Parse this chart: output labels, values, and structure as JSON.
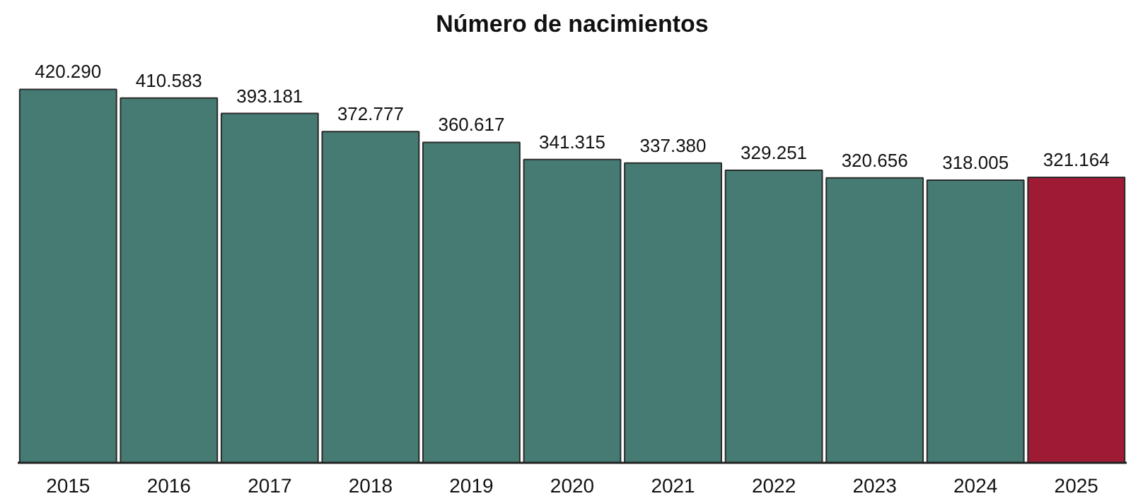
{
  "chart_data": {
    "type": "bar",
    "title": "Número de nacimientos",
    "categories": [
      "2015",
      "2016",
      "2017",
      "2018",
      "2019",
      "2020",
      "2021",
      "2022",
      "2023",
      "2024",
      "2025"
    ],
    "values": [
      420290,
      410583,
      393181,
      372777,
      360617,
      341315,
      337380,
      329251,
      320656,
      318005,
      321164
    ],
    "value_labels": [
      "420.290",
      "410.583",
      "393.181",
      "372.777",
      "360.617",
      "341.315",
      "337.380",
      "329.251",
      "320.656",
      "318.005",
      "321.164"
    ],
    "colors": [
      "#457b72",
      "#457b72",
      "#457b72",
      "#457b72",
      "#457b72",
      "#457b72",
      "#457b72",
      "#457b72",
      "#457b72",
      "#457b72",
      "#9e1a35"
    ],
    "grid": false
  }
}
